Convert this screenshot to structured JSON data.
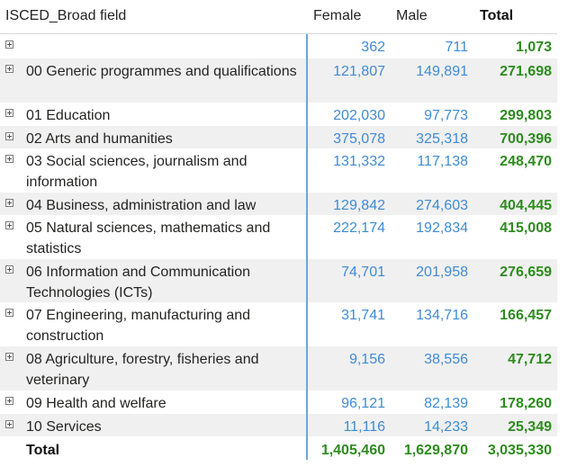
{
  "header": {
    "field": "ISCED_Broad field",
    "female": "Female",
    "male": "Male",
    "total": "Total"
  },
  "rows": [
    {
      "label": "",
      "female": "362",
      "male": "711",
      "total": "1,073"
    },
    {
      "label": "00 Generic programmes and qualifications",
      "female": "121,807",
      "male": "149,891",
      "total": "271,698"
    },
    {
      "label": "01 Education",
      "female": "202,030",
      "male": "97,773",
      "total": "299,803"
    },
    {
      "label": "02 Arts and humanities",
      "female": "375,078",
      "male": "325,318",
      "total": "700,396"
    },
    {
      "label": "03 Social sciences, journalism and information",
      "female": "131,332",
      "male": "117,138",
      "total": "248,470"
    },
    {
      "label": "04 Business, administration and law",
      "female": "129,842",
      "male": "274,603",
      "total": "404,445"
    },
    {
      "label": "05 Natural sciences, mathematics and statistics",
      "female": "222,174",
      "male": "192,834",
      "total": "415,008"
    },
    {
      "label": "06 Information and Communication Technologies (ICTs)",
      "female": "74,701",
      "male": "201,958",
      "total": "276,659"
    },
    {
      "label": "07 Engineering, manufacturing and construction",
      "female": "31,741",
      "male": "134,716",
      "total": "166,457"
    },
    {
      "label": "08 Agriculture, forestry, fisheries and veterinary",
      "female": "9,156",
      "male": "38,556",
      "total": "47,712"
    },
    {
      "label": "09 Health and welfare",
      "female": "96,121",
      "male": "82,139",
      "total": "178,260"
    },
    {
      "label": "10 Services",
      "female": "11,116",
      "male": "14,233",
      "total": "25,349"
    }
  ],
  "totals": {
    "label": "Total",
    "female": "1,405,460",
    "male": "1,629,870",
    "total": "3,035,330"
  }
}
